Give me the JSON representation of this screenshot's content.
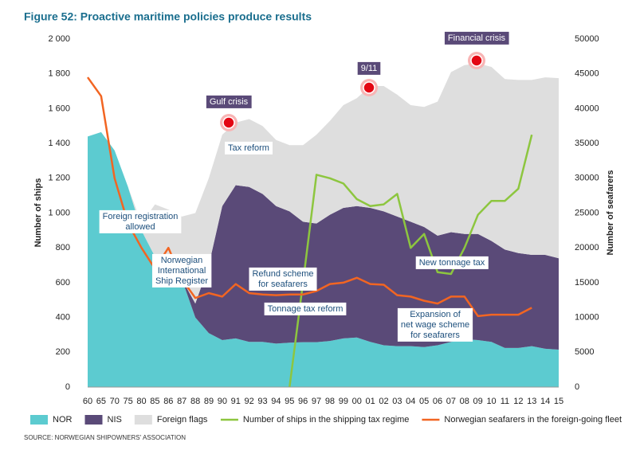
{
  "chart_data": {
    "type": "area",
    "title": "Figure 52: Proactive maritime policies produce results",
    "ylabel": "Number of ships",
    "y2label": "Number of seafarers",
    "source": "SOURCE: NORWEGIAN SHIPOWNERS' ASSOCIATION",
    "categories": [
      "60",
      "65",
      "70",
      "75",
      "80",
      "85",
      "86",
      "87",
      "88",
      "89",
      "90",
      "91",
      "92",
      "93",
      "94",
      "95",
      "96",
      "97",
      "98",
      "99",
      "00",
      "01",
      "02",
      "03",
      "04",
      "05",
      "06",
      "07",
      "08",
      "09",
      "10",
      "11",
      "12",
      "13",
      "14",
      "15"
    ],
    "series": [
      {
        "name": "NOR",
        "type": "area",
        "color": "#5ccbd0",
        "values": [
          1440,
          1465,
          1360,
          1150,
          900,
          750,
          700,
          620,
          400,
          310,
          270,
          280,
          260,
          260,
          250,
          255,
          258,
          258,
          265,
          280,
          285,
          260,
          240,
          235,
          235,
          230,
          240,
          260,
          275,
          270,
          260,
          225,
          225,
          235,
          220,
          215
        ]
      },
      {
        "name": "NIS",
        "type": "area",
        "color": "#5a4a78",
        "values": [
          0,
          0,
          0,
          0,
          0,
          0,
          0,
          0,
          80,
          390,
          770,
          880,
          890,
          850,
          790,
          755,
          692,
          682,
          725,
          750,
          755,
          770,
          770,
          745,
          715,
          690,
          630,
          630,
          605,
          610,
          580,
          565,
          545,
          525,
          540,
          525
        ]
      },
      {
        "name": "Foreign flags",
        "type": "area",
        "color": "#dedede",
        "values": [
          0,
          0,
          0,
          0,
          40,
          300,
          320,
          360,
          520,
          500,
          410,
          360,
          390,
          390,
          380,
          380,
          440,
          510,
          540,
          590,
          620,
          700,
          720,
          700,
          670,
          690,
          770,
          920,
          970,
          980,
          1000,
          980,
          995,
          1005,
          1020,
          1035
        ]
      },
      {
        "name": "Number of ships in the shipping tax regime",
        "type": "line",
        "color": "#8dc63f",
        "values": [
          null,
          null,
          null,
          null,
          null,
          null,
          null,
          null,
          null,
          null,
          null,
          null,
          null,
          null,
          null,
          0,
          600,
          1220,
          1200,
          1170,
          1080,
          1040,
          1050,
          1110,
          800,
          880,
          660,
          650,
          800,
          990,
          1070,
          1070,
          1140,
          1450,
          null,
          null
        ]
      },
      {
        "name": "Norwegian seafarers in the foreign-going fleet",
        "type": "line",
        "axis": "y2",
        "color": "#f26522",
        "values": [
          44500,
          41800,
          30000,
          23500,
          20000,
          17000,
          20000,
          15500,
          12800,
          13500,
          13000,
          14800,
          13500,
          13300,
          13200,
          13300,
          13300,
          13800,
          14800,
          15000,
          15700,
          14800,
          14700,
          13200,
          13000,
          12400,
          12000,
          13000,
          13000,
          10200,
          10400,
          10400,
          10400,
          11400,
          null,
          null
        ]
      }
    ],
    "ylim": [
      0,
      2000
    ],
    "yticks": [
      0,
      200,
      400,
      600,
      800,
      {
        "value": 1000,
        "label": "1 000"
      },
      {
        "value": 1200,
        "label": "1 200"
      },
      {
        "value": 1400,
        "label": "1 400"
      },
      {
        "value": 1600,
        "label": "1 600"
      },
      {
        "value": 1800,
        "label": "1 800"
      },
      {
        "value": 2000,
        "label": "2 000"
      }
    ],
    "y2lim": [
      0,
      50000
    ],
    "y2ticks": [
      0,
      5000,
      10000,
      15000,
      20000,
      25000,
      30000,
      35000,
      40000,
      45000,
      50000
    ],
    "events": [
      "Gulf crisis",
      "9/11",
      "Financial crisis"
    ],
    "annotations": [
      [
        "Tax reform"
      ],
      [
        "Foreign registration",
        "allowed"
      ],
      [
        "Norwegian",
        "International",
        "Ship Register"
      ],
      [
        "Refund scheme",
        "for seafarers"
      ],
      [
        "Tonnage tax reform"
      ],
      [
        "New tonnage tax"
      ],
      [
        "Expansion of",
        "net wage scheme",
        "for seafarers"
      ]
    ]
  }
}
